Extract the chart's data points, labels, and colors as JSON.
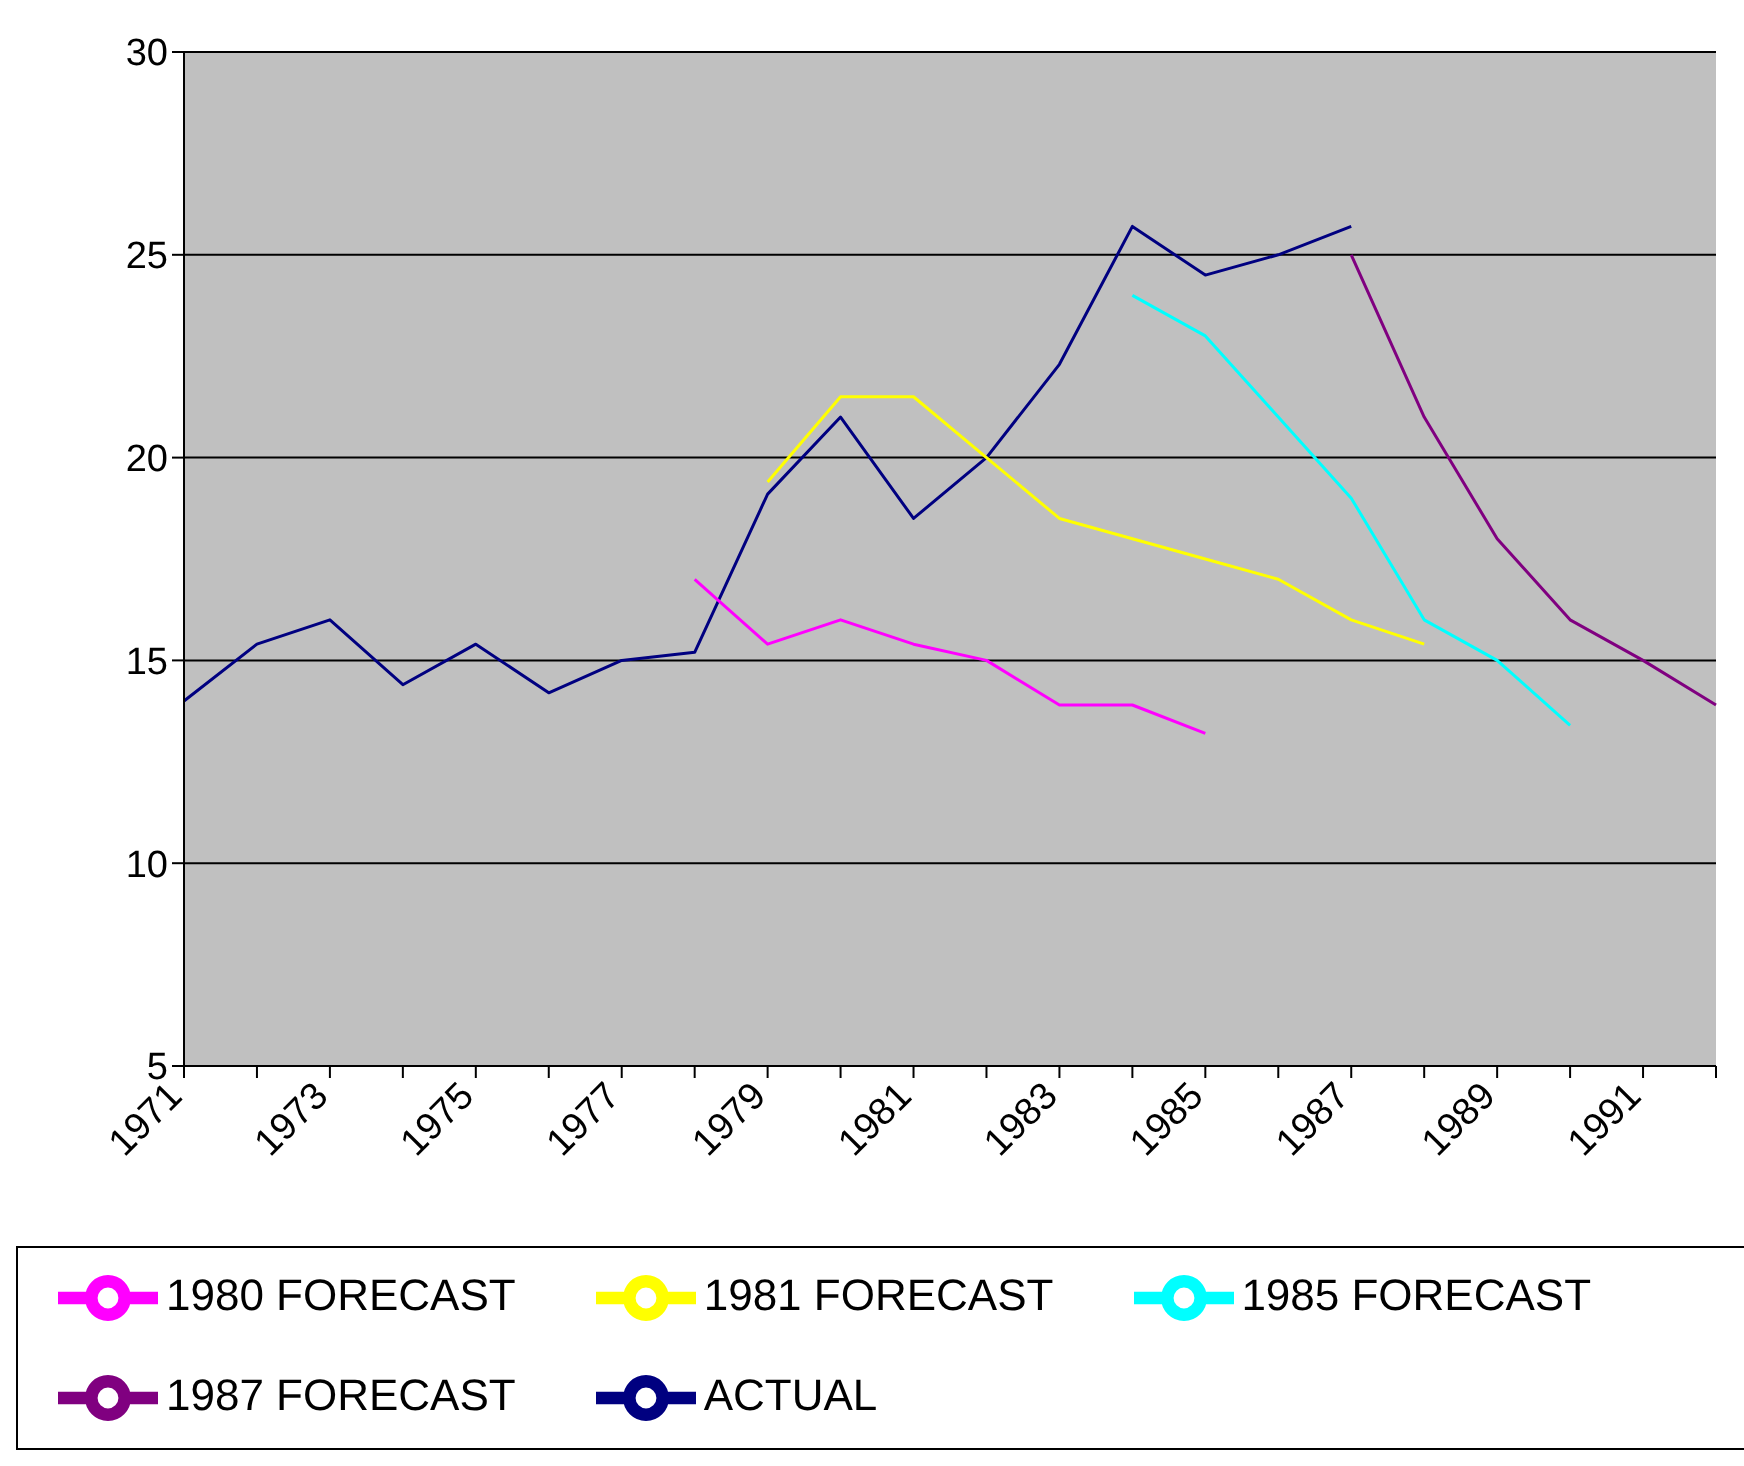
{
  "chart_data": {
    "type": "line",
    "categories": [
      "1971",
      null,
      "1973",
      null,
      "1975",
      null,
      "1977",
      null,
      "1979",
      null,
      "1981",
      null,
      "1983",
      null,
      "1985",
      null,
      "1987",
      null,
      "1989",
      null,
      "1991",
      null
    ],
    "series": [
      {
        "name": "ACTUAL",
        "color": "#000080",
        "values": [
          14.0,
          15.4,
          16.0,
          14.4,
          15.4,
          14.2,
          15.0,
          15.2,
          19.1,
          21.0,
          18.5,
          20.0,
          22.3,
          25.7,
          24.5,
          25.0,
          25.7,
          null,
          null,
          null,
          null,
          null
        ]
      },
      {
        "name": "1980 FORECAST",
        "color": "#ff00ff",
        "values": [
          null,
          null,
          null,
          null,
          null,
          null,
          null,
          17.0,
          15.4,
          16.0,
          15.4,
          15.0,
          13.9,
          13.9,
          13.2,
          null,
          null,
          null,
          null,
          null,
          null,
          null
        ]
      },
      {
        "name": "1981 FORECAST",
        "color": "#ffff00",
        "values": [
          null,
          null,
          null,
          null,
          null,
          null,
          null,
          null,
          19.4,
          21.5,
          21.5,
          20.0,
          18.5,
          18.0,
          17.5,
          17.0,
          16.0,
          15.4,
          null,
          null,
          null,
          null
        ]
      },
      {
        "name": "1985 FORECAST",
        "color": "#00ffff",
        "values": [
          null,
          null,
          null,
          null,
          null,
          null,
          null,
          null,
          null,
          null,
          null,
          null,
          null,
          24.0,
          23.0,
          21.0,
          19.0,
          16.0,
          15.0,
          13.4,
          null,
          null
        ]
      },
      {
        "name": "1987 FORECAST",
        "color": "#800080",
        "values": [
          null,
          null,
          null,
          null,
          null,
          null,
          null,
          null,
          null,
          null,
          null,
          null,
          null,
          null,
          null,
          null,
          25.0,
          21.0,
          18.0,
          16.0,
          15.0,
          13.9
        ]
      }
    ],
    "ylim": [
      5,
      30
    ],
    "yticks": [
      5,
      10,
      15,
      20,
      25,
      30
    ],
    "grid": "y",
    "legend": "bottom",
    "marker": "none",
    "line_style": "solid"
  }
}
